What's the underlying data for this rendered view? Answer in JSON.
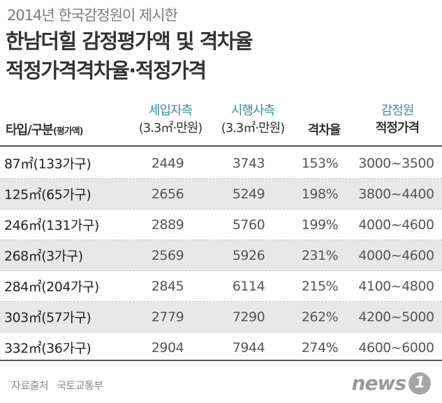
{
  "header": {
    "subtitle": "2014년 한국감정원이 제시한",
    "title_line1": "한남더힐 감정평가액 및 격차율",
    "title_line2": "적정가격격차율·적정가격"
  },
  "table": {
    "columns": {
      "type_label": "타입/구분",
      "type_sub": "(평가액)",
      "seller_line1": "세입자측",
      "seller_line2": "(3.3㎡·만원)",
      "market_line1": "시행사측",
      "market_line2": "(3.3㎡·만원)",
      "gap": "격차율",
      "appr_line1": "감정원",
      "appr_line2": "적정가격"
    },
    "rows": [
      {
        "type": "87㎡(133가구)",
        "seller": "2449",
        "market": "3743",
        "gap": "153%",
        "appr": "3000~3500"
      },
      {
        "type": "125㎡(65가구)",
        "seller": "2656",
        "market": "5249",
        "gap": "198%",
        "appr": "3800~4400"
      },
      {
        "type": "246㎡(131가구)",
        "seller": "2889",
        "market": "5760",
        "gap": "199%",
        "appr": "4000~4600"
      },
      {
        "type": "268㎡(3가구)",
        "seller": "2569",
        "market": "5926",
        "gap": "231%",
        "appr": "4000~4600"
      },
      {
        "type": "284㎡(204가구)",
        "seller": "2845",
        "market": "6114",
        "gap": "215%",
        "appr": "4100~4800"
      },
      {
        "type": "303㎡(57가구)",
        "seller": "2779",
        "market": "7290",
        "gap": "262%",
        "appr": "4200~5000"
      },
      {
        "type": "332㎡(36가구)",
        "seller": "2904",
        "market": "7944",
        "gap": "274%",
        "appr": "4600~6000"
      }
    ]
  },
  "footer": {
    "source_label": "자료출처",
    "source_value": "국토교통부",
    "logo_text": "news",
    "logo_mark": "1"
  },
  "colors": {
    "header_accent": "#3f8f8f",
    "stripe": "#e8e8e8"
  }
}
